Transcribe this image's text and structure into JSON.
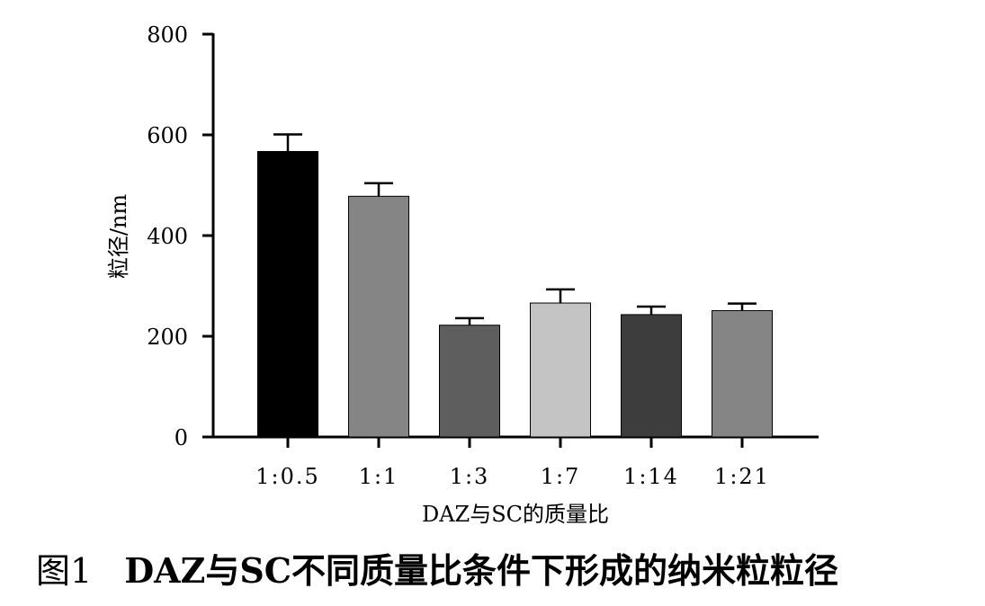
{
  "figure": {
    "number": "图1",
    "title": "DAZ与SC不同质量比条件下形成的纳米粒粒径"
  },
  "chart_data": {
    "type": "bar",
    "categories": [
      "1:0.5",
      "1:1",
      "1:3",
      "1:7",
      "1:14",
      "1:21"
    ],
    "values": [
      567,
      478,
      222,
      266,
      243,
      251
    ],
    "error": [
      34,
      26,
      14,
      27,
      16,
      14
    ],
    "colors": [
      "#000000",
      "#858585",
      "#5e5e5e",
      "#c4c4c4",
      "#3d3d3d",
      "#858585"
    ],
    "xlabel": "DAZ与SC的质量比",
    "ylabel": "粒径/nm",
    "ylim": [
      0,
      800
    ],
    "yticks": [
      0,
      200,
      400,
      600,
      800
    ],
    "grid": false,
    "legend": "none"
  }
}
